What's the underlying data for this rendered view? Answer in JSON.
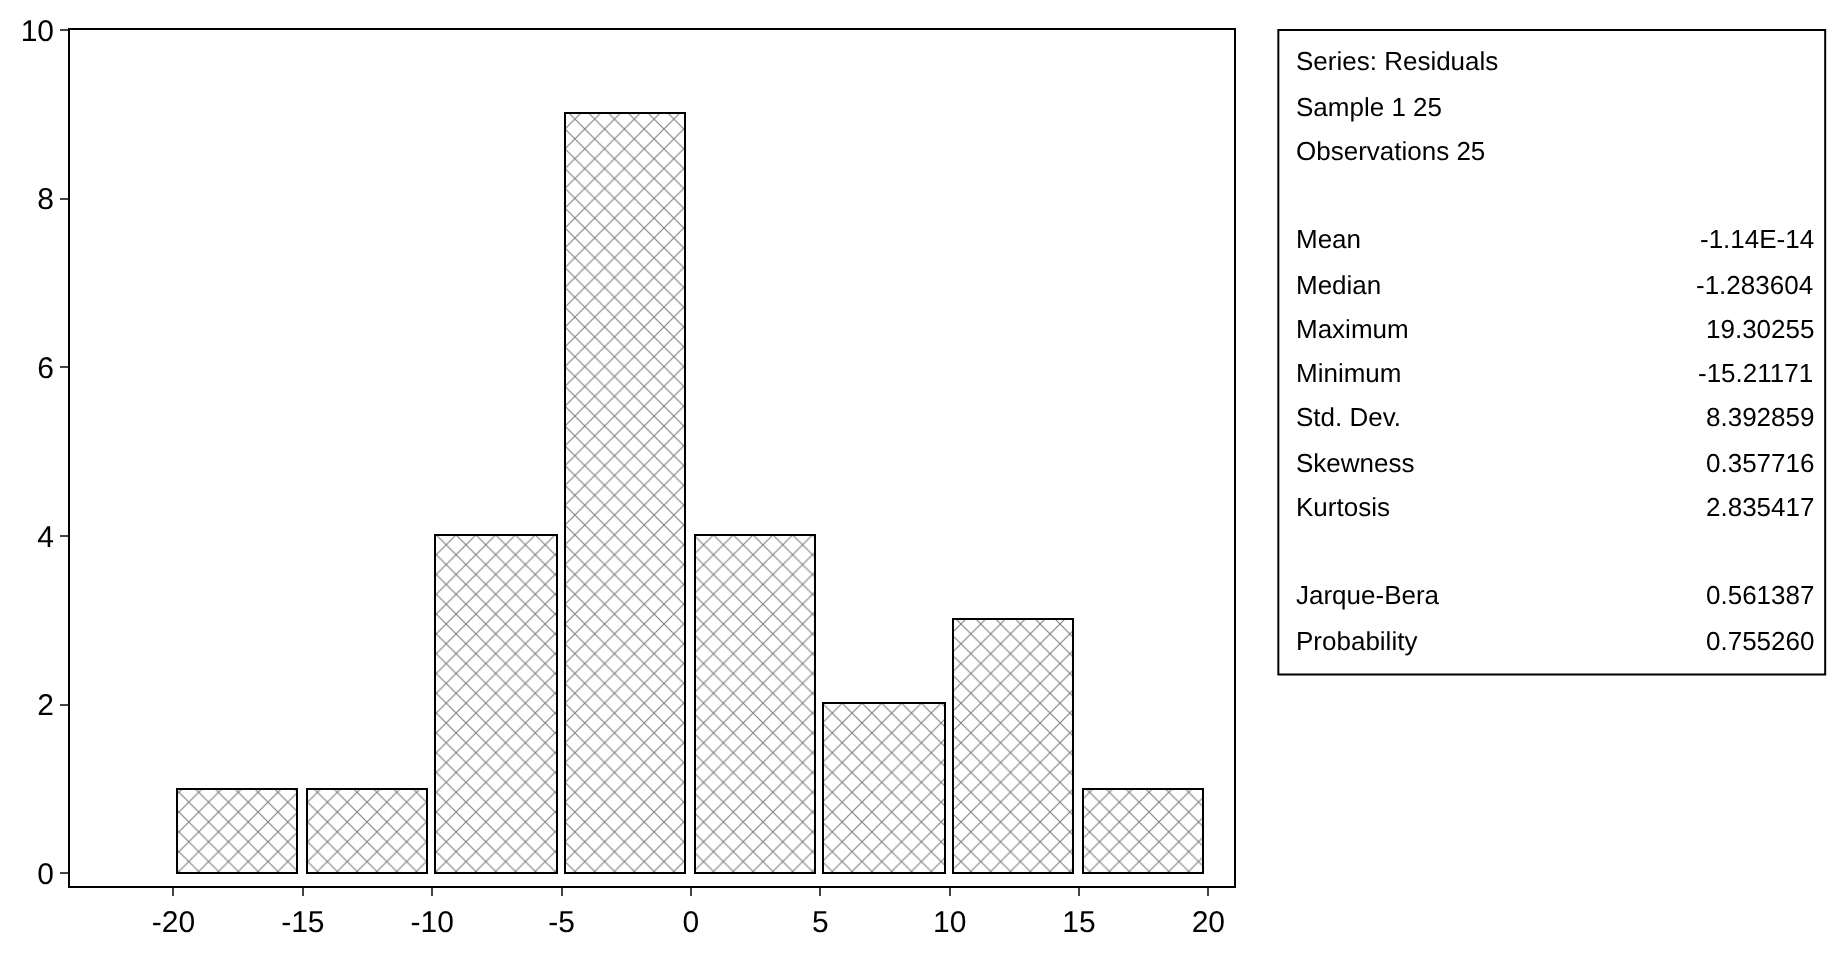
{
  "chart_data": {
    "type": "histogram",
    "bins": [
      -20,
      -15,
      -10,
      -5,
      0,
      5,
      10,
      15,
      20
    ],
    "values": [
      1,
      1,
      4,
      9,
      4,
      2,
      3,
      1
    ],
    "color": "#000000",
    "xlim": [
      -24,
      21
    ],
    "xticks": [
      -20,
      -15,
      -10,
      -5,
      0,
      5,
      10,
      15,
      20
    ],
    "ylim": [
      -0.15,
      10
    ],
    "yticks": [
      0,
      2,
      4,
      6,
      8,
      10
    ],
    "legend": false,
    "annotations": [
      "Series: Residuals",
      "Sample 1 25",
      "Observations 25",
      "Mean\t-1.14E-14",
      "Median\t-1.283604",
      "Maximum\t19.30255",
      "Minimum\t-15.21171",
      "Std. Dev.\t8.392859",
      "Skewness\t0.357716",
      "Kurtosis\t2.835417",
      "Jarque-Bera\t0.561387",
      "Probability\t0.755260"
    ]
  }
}
